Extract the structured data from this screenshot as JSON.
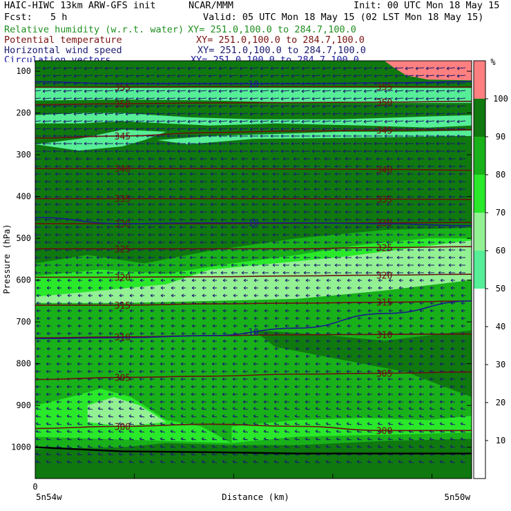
{
  "header": {
    "title_left": "HAIC-HIWC 13km ARW-GFS init",
    "org": "NCAR/MMM",
    "init": "Init: 00 UTC Mon 18 May 15",
    "fcst_label": "Fcst:",
    "fcst_value": "5 h",
    "valid": "Valid: 05 UTC Mon 18 May 15 (02 LST Mon 18 May 15)"
  },
  "fields": [
    {
      "name": "Relative humidity (w.r.t. water)",
      "xy": "XY= 251.0,100.0 to 284.7,100.0",
      "color": "#1f8f1f"
    },
    {
      "name": "Potential temperature",
      "xy": "XY= 251.0,100.0 to 284.7,100.0",
      "color": "#7a1010"
    },
    {
      "name": "Horizontal wind speed",
      "xy": "XY= 251.0,100.0 to 284.7,100.0",
      "color": "#1a1a70"
    },
    {
      "name": "Circulation vectors",
      "xy": "XY= 251.0,100.0 to 284.7,100.0",
      "color": "#1a1a9a"
    }
  ],
  "axes": {
    "ylabel": "Pressure (hPa)",
    "xlabel": "Distance (km)",
    "x_tick_0": "0",
    "x_left_label": "5n54w",
    "x_right_label": "5n50w",
    "colorbar_unit": "%"
  },
  "chart_data": {
    "type": "heatmap",
    "title": "HAIC-HIWC 13km ARW-GFS init",
    "xlabel": "Distance (km)",
    "ylabel": "Pressure (hPa)",
    "y_ticks": [
      100,
      200,
      300,
      400,
      500,
      600,
      700,
      800,
      900,
      1000
    ],
    "ylim": [
      1075,
      75
    ],
    "colorbar": {
      "unit": "%",
      "ticks": [
        10,
        20,
        30,
        40,
        50,
        60,
        70,
        80,
        90,
        100
      ],
      "bands": [
        {
          "from": 0,
          "to": 50,
          "color": "#ffffff"
        },
        {
          "from": 50,
          "to": 60,
          "color": "#56ee96"
        },
        {
          "from": 60,
          "to": 70,
          "color": "#93f093"
        },
        {
          "from": 70,
          "to": 80,
          "color": "#2ae82a"
        },
        {
          "from": 80,
          "to": 90,
          "color": "#19b119"
        },
        {
          "from": 90,
          "to": 100,
          "color": "#0f780f"
        },
        {
          "from": 100,
          "to": 110,
          "color": "#ff8080"
        }
      ]
    },
    "theta_contours": [
      {
        "label": "300",
        "p": [
          955,
          950,
          945,
          950,
          960,
          960
        ]
      },
      {
        "label": "305",
        "p": [
          838,
          833,
          830,
          825,
          823,
          820
        ]
      },
      {
        "label": "310",
        "p": [
          738,
          736,
          733,
          731,
          730,
          729
        ]
      },
      {
        "label": "315",
        "p": [
          660,
          660,
          657,
          655,
          653,
          650
        ]
      },
      {
        "label": "320",
        "p": [
          593,
          593,
          592,
          590,
          588,
          586
        ]
      },
      {
        "label": "325",
        "p": [
          525,
          525,
          525,
          525,
          522,
          520
        ]
      },
      {
        "label": "330",
        "p": [
          465,
          465,
          465,
          464,
          463,
          462
        ]
      },
      {
        "label": "335",
        "p": [
          405,
          405,
          405,
          405,
          406,
          407
        ]
      },
      {
        "label": "340",
        "p": [
          333,
          333,
          333,
          334,
          335,
          337
        ]
      },
      {
        "label": "345",
        "p": [
          260,
          255,
          247,
          243,
          241,
          240
        ]
      },
      {
        "label": "350",
        "p": [
          180,
          178,
          176,
          175,
          174,
          172
        ]
      },
      {
        "label": "355",
        "p": [
          138,
          138,
          137,
          137,
          137,
          138
        ]
      }
    ],
    "wind_contours": [
      {
        "label": "10",
        "p": [
          740,
          738,
          733,
          715,
          680,
          650
        ]
      },
      {
        "label": "10",
        "p": [
          450,
          465,
          463,
          463,
          465,
          470
        ]
      },
      {
        "label": "10",
        "p": [
          125,
          130,
          130,
          130,
          128,
          125
        ]
      }
    ],
    "background_rh": 95,
    "upper_band_p": [
      75,
      125
    ],
    "terrain_p": [
      1000,
      1010,
      1012,
      1015,
      1015,
      1015
    ]
  }
}
